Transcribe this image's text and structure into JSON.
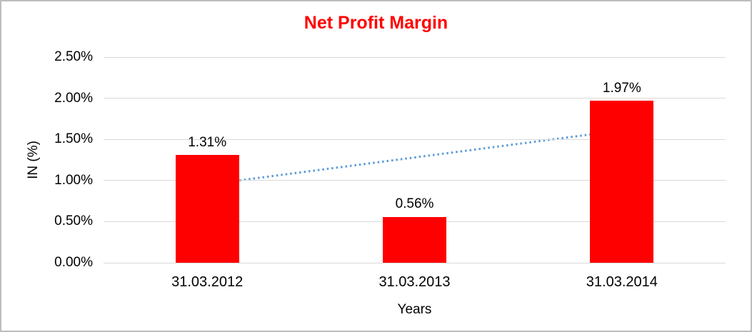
{
  "chart_data": {
    "type": "bar",
    "title": "Net Profit Margin",
    "xlabel": "Years",
    "ylabel": "IN (%)",
    "categories": [
      "31.03.2012",
      "31.03.2013",
      "31.03.2014"
    ],
    "values": [
      1.31,
      0.56,
      1.97
    ],
    "data_labels": [
      "1.31%",
      "0.56%",
      "1.97%"
    ],
    "ylim": [
      0,
      2.5
    ],
    "ytick_step": 0.5,
    "ytick_labels": [
      "0.00%",
      "0.50%",
      "1.00%",
      "1.50%",
      "2.00%",
      "2.50%"
    ],
    "grid": true,
    "legend": "none",
    "trendline": {
      "type": "linear",
      "style": "dotted",
      "endpoint_values": [
        0.95,
        1.61
      ]
    },
    "colors": {
      "bar": "#FF0000",
      "title": "#FF0000",
      "trendline": "#5B9BD5",
      "gridline": "#D9D9D9",
      "text": "#000000",
      "border": "#BDBDBD",
      "background": "#FFFFFF"
    }
  }
}
